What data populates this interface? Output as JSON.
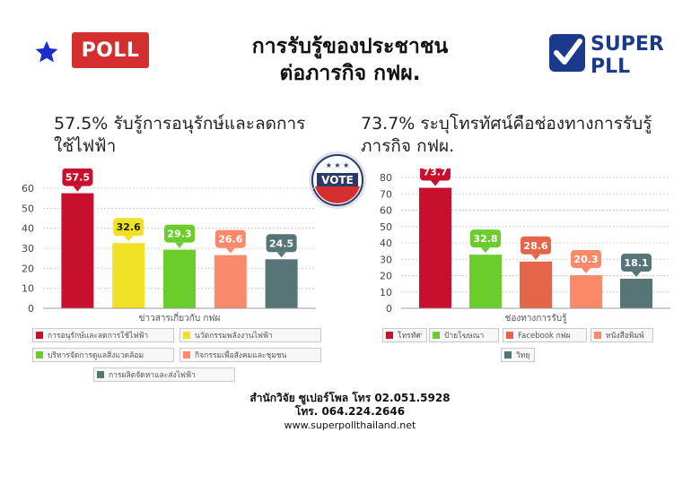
{
  "header": {
    "poll_logo_text": "POLL",
    "poll_logo_color": "#d32f2f",
    "star_color": "#1a2fc9",
    "title_line1": "การรับรู้ของประชาชน",
    "title_line2": "ต่อภารกิจ กฟผ.",
    "superpoll_logo": {
      "line1": "SUPER",
      "line2": "PLL",
      "color": "#1b3a8c",
      "check_color": "#1b3a8c"
    }
  },
  "badge": {
    "text": "VOTE",
    "icon": "vote-badge-icon"
  },
  "chart_data": [
    {
      "type": "bar",
      "title": "57.5% รับรู้การอนุรักษ์และลดการใช้ไฟฟ้า",
      "xlabel": "ข่าวสารเกี่ยวกับ กฟผ",
      "ylabel": "",
      "ylim": [
        0,
        60
      ],
      "yticks": [
        0,
        10,
        20,
        30,
        40,
        50,
        60
      ],
      "grid": true,
      "legend_position": "bottom",
      "series": [
        {
          "name": "การอนุรักษ์และลดการใช้ไฟฟ้า",
          "value": 57.5,
          "color": "#c8102e"
        },
        {
          "name": "นวัตกรรมพลังงานไฟฟ้า",
          "value": 32.6,
          "color": "#f2e024"
        },
        {
          "name": "บริหารจัดการดูแลสิ่งแวดล้อม",
          "value": 29.3,
          "color": "#6acd2b"
        },
        {
          "name": "กิจกรรมเพื่อสังคมและชุมชน",
          "value": 26.6,
          "color": "#fa8a6a"
        },
        {
          "name": "การผลิตจัดหาและส่งไฟฟ้า",
          "value": 24.5,
          "color": "#577477"
        }
      ]
    },
    {
      "type": "bar",
      "title": "73.7% ระบุโทรทัศน์คือช่องทางการรับรู้ภารกิจ กฟผ.",
      "xlabel": "ช่องทางการรับรู้",
      "ylabel": "",
      "ylim": [
        0,
        80
      ],
      "yticks": [
        0,
        10,
        20,
        30,
        40,
        50,
        60,
        70,
        80
      ],
      "grid": true,
      "legend_position": "bottom",
      "series": [
        {
          "name": "โทรทัศน์",
          "value": 73.7,
          "color": "#c8102e"
        },
        {
          "name": "ป้ายโฆษณา",
          "value": 32.8,
          "color": "#6acd2b"
        },
        {
          "name": "Facebook กฟผ",
          "value": 28.6,
          "color": "#e5654a"
        },
        {
          "name": "หนังสือพิมพ์",
          "value": 20.3,
          "color": "#fa8a6a"
        },
        {
          "name": "วิทยุ",
          "value": 18.1,
          "color": "#577477"
        }
      ]
    }
  ],
  "footer": {
    "line1": "สำนักวิจัย ซูเปอร์โพล โทร 02.051.5928",
    "line2": "โทร. 064.224.2646",
    "line3": "www.superpollthailand.net"
  }
}
